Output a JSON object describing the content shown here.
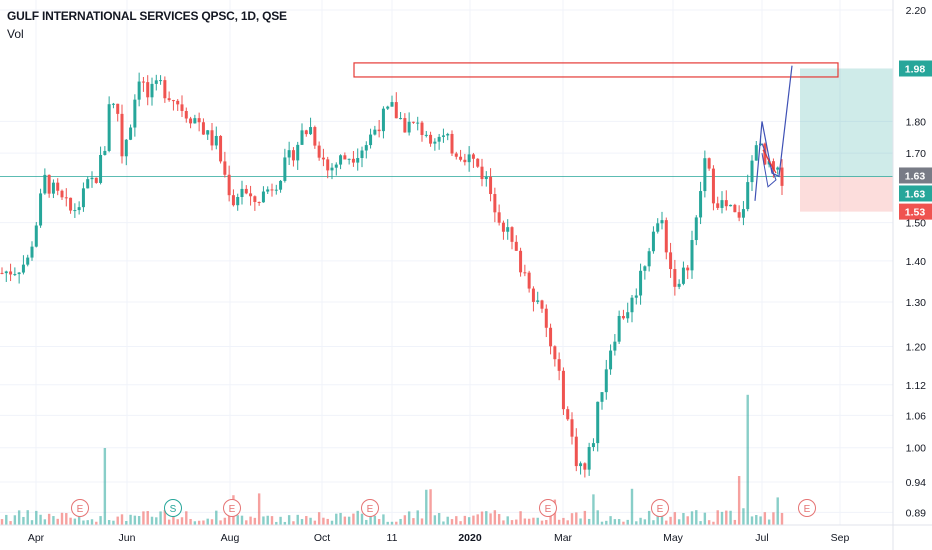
{
  "header": {
    "symbol_title": "GULF INTERNATIONAL SERVICES QPSC, 1D, QSE",
    "volume_label": "Vol"
  },
  "chart_data": {
    "type": "candlestick",
    "price_axis": {
      "ticks": [
        "2.20",
        "1.80",
        "1.70",
        "1.50",
        "1.40",
        "1.30",
        "1.20",
        "1.12",
        "1.06",
        "1.00",
        "0.94",
        "0.89"
      ],
      "scale": "log",
      "range": [
        0.87,
        2.24
      ]
    },
    "time_axis": {
      "labels": [
        "Apr",
        "Jun",
        "Aug",
        "Oct",
        "11",
        "2020",
        "Mar",
        "May",
        "Jul",
        "Sep"
      ],
      "bold_labels": [
        "2020"
      ]
    },
    "price_tags": [
      {
        "value": "1.98",
        "color": "#26a69a"
      },
      {
        "value": "1.63",
        "color": "#787b86"
      },
      {
        "value": "1.63",
        "color": "#26a69a"
      },
      {
        "value": "1.53",
        "color": "#ef5350"
      }
    ],
    "current_price": 1.63,
    "position": {
      "entry": 1.63,
      "target": 1.98,
      "stop": 1.53
    },
    "resistance_zone": {
      "low": 1.95,
      "high": 2.0
    },
    "event_markers": [
      {
        "label": "E",
        "type": "earnings"
      },
      {
        "label": "S",
        "type": "split"
      },
      {
        "label": "E",
        "type": "earnings"
      },
      {
        "label": "E",
        "type": "earnings"
      },
      {
        "label": "E",
        "type": "earnings"
      },
      {
        "label": "E",
        "type": "earnings"
      },
      {
        "label": "E",
        "type": "earnings"
      }
    ],
    "price_path": [
      [
        0,
        1.37
      ],
      [
        3,
        1.38
      ],
      [
        6,
        1.4
      ],
      [
        8,
        1.5
      ],
      [
        10,
        1.62
      ],
      [
        13,
        1.57
      ],
      [
        16,
        1.53
      ],
      [
        18,
        1.55
      ],
      [
        20,
        1.6
      ],
      [
        22,
        1.63
      ],
      [
        24,
        1.72
      ],
      [
        25,
        1.87
      ],
      [
        27,
        1.83
      ],
      [
        28,
        1.7
      ],
      [
        30,
        1.8
      ],
      [
        32,
        1.96
      ],
      [
        34,
        1.88
      ],
      [
        37,
        1.92
      ],
      [
        40,
        1.88
      ],
      [
        43,
        1.83
      ],
      [
        46,
        1.8
      ],
      [
        48,
        1.75
      ],
      [
        50,
        1.73
      ],
      [
        52,
        1.63
      ],
      [
        54,
        1.56
      ],
      [
        56,
        1.6
      ],
      [
        58,
        1.55
      ],
      [
        61,
        1.58
      ],
      [
        64,
        1.62
      ],
      [
        67,
        1.68
      ],
      [
        70,
        1.76
      ],
      [
        72,
        1.78
      ],
      [
        74,
        1.71
      ],
      [
        76,
        1.65
      ],
      [
        79,
        1.68
      ],
      [
        82,
        1.7
      ],
      [
        85,
        1.73
      ],
      [
        88,
        1.8
      ],
      [
        91,
        1.84
      ],
      [
        94,
        1.79
      ],
      [
        97,
        1.78
      ],
      [
        100,
        1.76
      ],
      [
        103,
        1.74
      ],
      [
        106,
        1.71
      ],
      [
        109,
        1.69
      ],
      [
        111,
        1.66
      ],
      [
        113,
        1.62
      ],
      [
        115,
        1.55
      ],
      [
        118,
        1.47
      ],
      [
        120,
        1.41
      ],
      [
        123,
        1.35
      ],
      [
        126,
        1.27
      ],
      [
        128,
        1.2
      ],
      [
        130,
        1.13
      ],
      [
        132,
        1.05
      ],
      [
        134,
        0.98
      ],
      [
        136,
        0.96
      ],
      [
        138,
        1.02
      ],
      [
        140,
        1.12
      ],
      [
        142,
        1.2
      ],
      [
        144,
        1.26
      ],
      [
        147,
        1.3
      ],
      [
        150,
        1.4
      ],
      [
        152,
        1.48
      ],
      [
        154,
        1.5
      ],
      [
        156,
        1.38
      ],
      [
        158,
        1.33
      ],
      [
        160,
        1.4
      ],
      [
        162,
        1.5
      ],
      [
        164,
        1.68
      ],
      [
        166,
        1.58
      ],
      [
        168,
        1.55
      ],
      [
        170,
        1.53
      ],
      [
        172,
        1.5
      ],
      [
        174,
        1.6
      ],
      [
        176,
        1.75
      ],
      [
        178,
        1.66
      ],
      [
        179,
        1.65
      ],
      [
        181,
        1.63
      ],
      [
        182,
        1.63
      ]
    ],
    "volume_spikes": [
      {
        "index": 24,
        "height": 0.55
      },
      {
        "index": 154,
        "height": 0.18
      },
      {
        "index": 174,
        "height": 0.93
      },
      {
        "index": 172,
        "height": 0.35
      }
    ]
  }
}
